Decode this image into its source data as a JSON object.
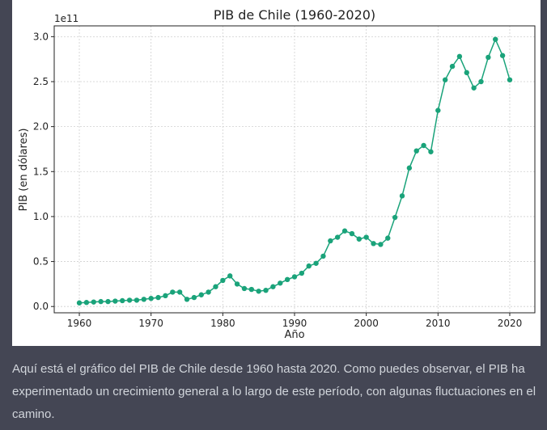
{
  "chart_data": {
    "type": "line",
    "title": "PIB de Chile (1960-2020)",
    "xlabel": "Año",
    "ylabel": "PIB (en dólares)",
    "y_multiplier_label": "1e11",
    "xlim": [
      1956.5,
      2023.5
    ],
    "ylim": [
      -0.07,
      3.12
    ],
    "x_ticks": [
      1960,
      1970,
      1980,
      1990,
      2000,
      2010,
      2020
    ],
    "y_ticks": [
      0.0,
      0.5,
      1.0,
      1.5,
      2.0,
      2.5,
      3.0
    ],
    "y_tick_labels": [
      "0.0",
      "0.5",
      "1.0",
      "1.5",
      "2.0",
      "2.5",
      "3.0"
    ],
    "grid": true,
    "color": "#1aa37a",
    "series": [
      {
        "name": "PIB",
        "x": [
          1960,
          1961,
          1962,
          1963,
          1964,
          1965,
          1966,
          1967,
          1968,
          1969,
          1970,
          1971,
          1972,
          1973,
          1974,
          1975,
          1976,
          1977,
          1978,
          1979,
          1980,
          1981,
          1982,
          1983,
          1984,
          1985,
          1986,
          1987,
          1988,
          1989,
          1990,
          1991,
          1992,
          1993,
          1994,
          1995,
          1996,
          1997,
          1998,
          1999,
          2000,
          2001,
          2002,
          2003,
          2004,
          2005,
          2006,
          2007,
          2008,
          2009,
          2010,
          2011,
          2012,
          2013,
          2014,
          2015,
          2016,
          2017,
          2018,
          2019,
          2020
        ],
        "values": [
          0.04,
          0.045,
          0.05,
          0.055,
          0.055,
          0.06,
          0.065,
          0.07,
          0.07,
          0.08,
          0.09,
          0.1,
          0.12,
          0.16,
          0.16,
          0.08,
          0.1,
          0.13,
          0.16,
          0.22,
          0.29,
          0.34,
          0.25,
          0.2,
          0.19,
          0.17,
          0.18,
          0.22,
          0.26,
          0.3,
          0.33,
          0.37,
          0.45,
          0.48,
          0.56,
          0.73,
          0.77,
          0.84,
          0.81,
          0.75,
          0.77,
          0.7,
          0.69,
          0.76,
          0.99,
          1.23,
          1.54,
          1.73,
          1.79,
          1.72,
          2.18,
          2.52,
          2.67,
          2.78,
          2.6,
          2.43,
          2.5,
          2.77,
          2.97,
          2.79,
          2.52
        ]
      }
    ]
  },
  "caption": "Aquí está el gráfico del PIB de Chile desde 1960 hasta 2020. Como puedes observar, el PIB ha experimentado un crecimiento general a lo largo de este período, con algunas fluctuaciones en el camino."
}
